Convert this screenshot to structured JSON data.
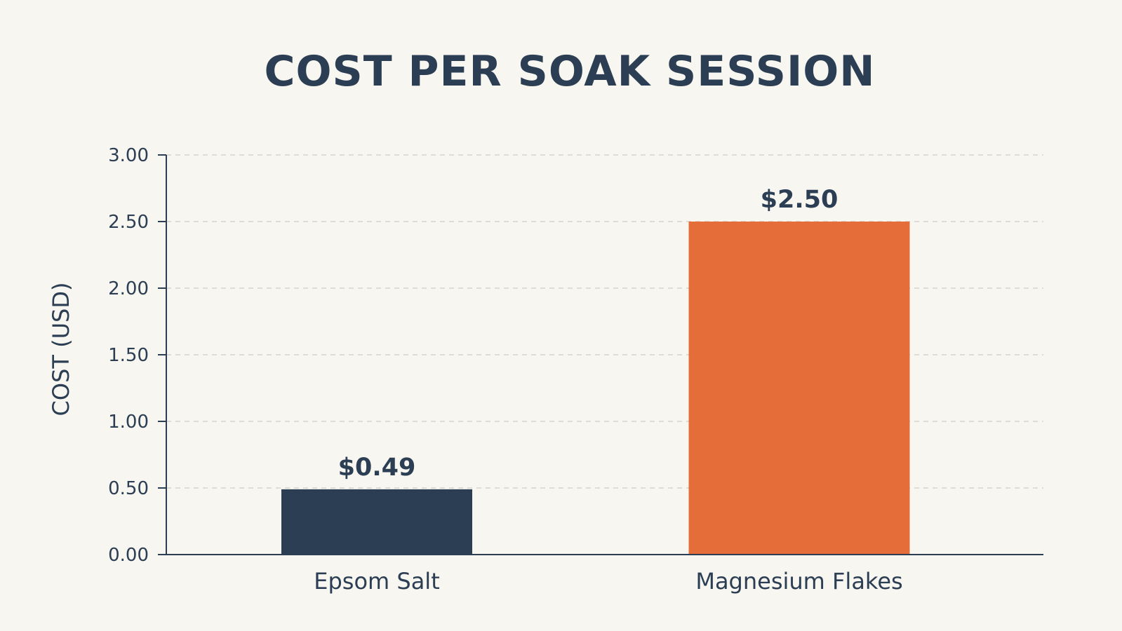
{
  "chart_data": {
    "type": "bar",
    "title": "COST PER SOAK SESSION",
    "ylabel": "COST (USD)",
    "xlabel": "",
    "categories": [
      "Epsom Salt",
      "Magnesium Flakes"
    ],
    "values": [
      0.49,
      2.5
    ],
    "value_labels": [
      "$0.49",
      "$2.50"
    ],
    "bar_colors": [
      "#2b3e53",
      "#e46d3a"
    ],
    "ylim": [
      0,
      3
    ],
    "yticks": [
      0,
      0.5,
      1,
      1.5,
      2,
      2.5,
      3
    ],
    "ytick_labels": [
      "0.00",
      "0.50",
      "1.00",
      "1.50",
      "2.00",
      "2.50",
      "3.00"
    ],
    "grid": true,
    "legend": "none"
  },
  "colors": {
    "background": "#f8f6f0",
    "text": "#2b3e53",
    "grid": "#d6d3cb"
  }
}
